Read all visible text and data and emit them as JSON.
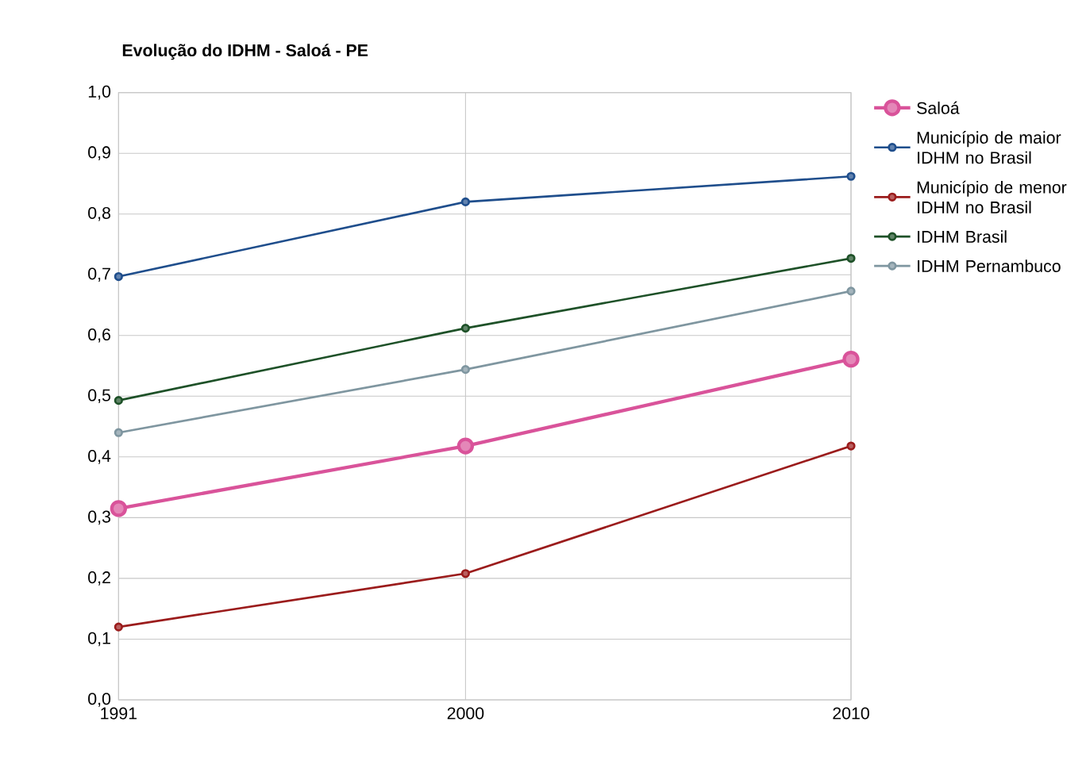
{
  "chart_data": {
    "type": "line",
    "title": "Evolução do IDHM - Saloá - PE",
    "x": [
      1991,
      2000,
      2010
    ],
    "series": [
      {
        "name": "Saloá",
        "color": "#d9539a",
        "values": [
          0.315,
          0.418,
          0.561
        ]
      },
      {
        "name": "Município de maior IDHM no Brasil",
        "color": "#1f4e8c",
        "values": [
          0.697,
          0.82,
          0.862
        ]
      },
      {
        "name": "Município de menor IDHM no Brasil",
        "color": "#9b1c1c",
        "values": [
          0.12,
          0.208,
          0.418
        ]
      },
      {
        "name": "IDHM Brasil",
        "color": "#1e5128",
        "values": [
          0.493,
          0.612,
          0.727
        ]
      },
      {
        "name": "IDHM Pernambuco",
        "color": "#7f96a0",
        "values": [
          0.44,
          0.544,
          0.673
        ]
      }
    ],
    "xlim": [
      1991,
      2010
    ],
    "xticks": [
      1991,
      2000,
      2010
    ],
    "ylim": [
      0,
      1
    ],
    "yticks": [
      {
        "value": 0,
        "label": "0,0"
      },
      {
        "value": 0.1,
        "label": "0,1"
      },
      {
        "value": 0.2,
        "label": "0,2"
      },
      {
        "value": 0.3,
        "label": "0,3"
      },
      {
        "value": 0.4,
        "label": "0,4"
      },
      {
        "value": 0.5,
        "label": "0,5"
      },
      {
        "value": 0.6,
        "label": "0,6"
      },
      {
        "value": 0.7,
        "label": "0,7"
      },
      {
        "value": 0.8,
        "label": "0,8"
      },
      {
        "value": 0.9,
        "label": "0,9"
      },
      {
        "value": 1,
        "label": "1,0"
      }
    ],
    "grid": true,
    "legend": "right",
    "marker": "circle",
    "line_style": "solid"
  }
}
